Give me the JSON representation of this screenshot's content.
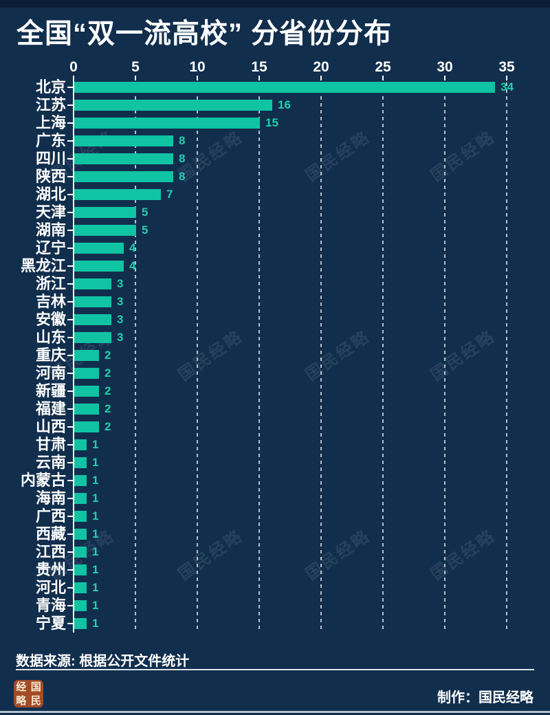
{
  "title": "全国“双一流高校” 分省份分布",
  "source_label": "数据来源: 根据公开文件统计",
  "credit_label": "制作：国民经略",
  "watermark_text": "国民经略",
  "logo_chars": [
    "经",
    "国",
    "略",
    "民"
  ],
  "colors": {
    "background": "#112E4D",
    "top_strip": "#0A1E37",
    "bar": "#10C4A3",
    "value_label": "#1FD0AC",
    "text": "#FFFFFF",
    "grid": "rgba(255,255,255,0.7)",
    "axis": "#FFFFFF",
    "divider": "#DDE5EC",
    "logo_bg": "#A34B26",
    "logo_text": "#F7E9D2"
  },
  "chart_data": {
    "type": "bar",
    "orientation": "horizontal",
    "title": "全国“双一流高校” 分省份分布",
    "categories": [
      "北京",
      "江苏",
      "上海",
      "广东",
      "四川",
      "陕西",
      "湖北",
      "天津",
      "湖南",
      "辽宁",
      "黑龙江",
      "浙江",
      "吉林",
      "安徽",
      "山东",
      "重庆",
      "河南",
      "新疆",
      "福建",
      "山西",
      "甘肃",
      "云南",
      "内蒙古",
      "海南",
      "广西",
      "西藏",
      "江西",
      "贵州",
      "河北",
      "青海",
      "宁夏"
    ],
    "values": [
      34,
      16,
      15,
      8,
      8,
      8,
      7,
      5,
      5,
      4,
      4,
      3,
      3,
      3,
      3,
      2,
      2,
      2,
      2,
      2,
      1,
      1,
      1,
      1,
      1,
      1,
      1,
      1,
      1,
      1,
      1
    ],
    "xlabel": "",
    "ylabel": "",
    "xlim": [
      0,
      35
    ],
    "xticks": [
      0,
      5,
      10,
      15,
      20,
      25,
      30,
      35
    ],
    "grid": "dashed-vertical",
    "value_labels": true,
    "legend": "none"
  }
}
